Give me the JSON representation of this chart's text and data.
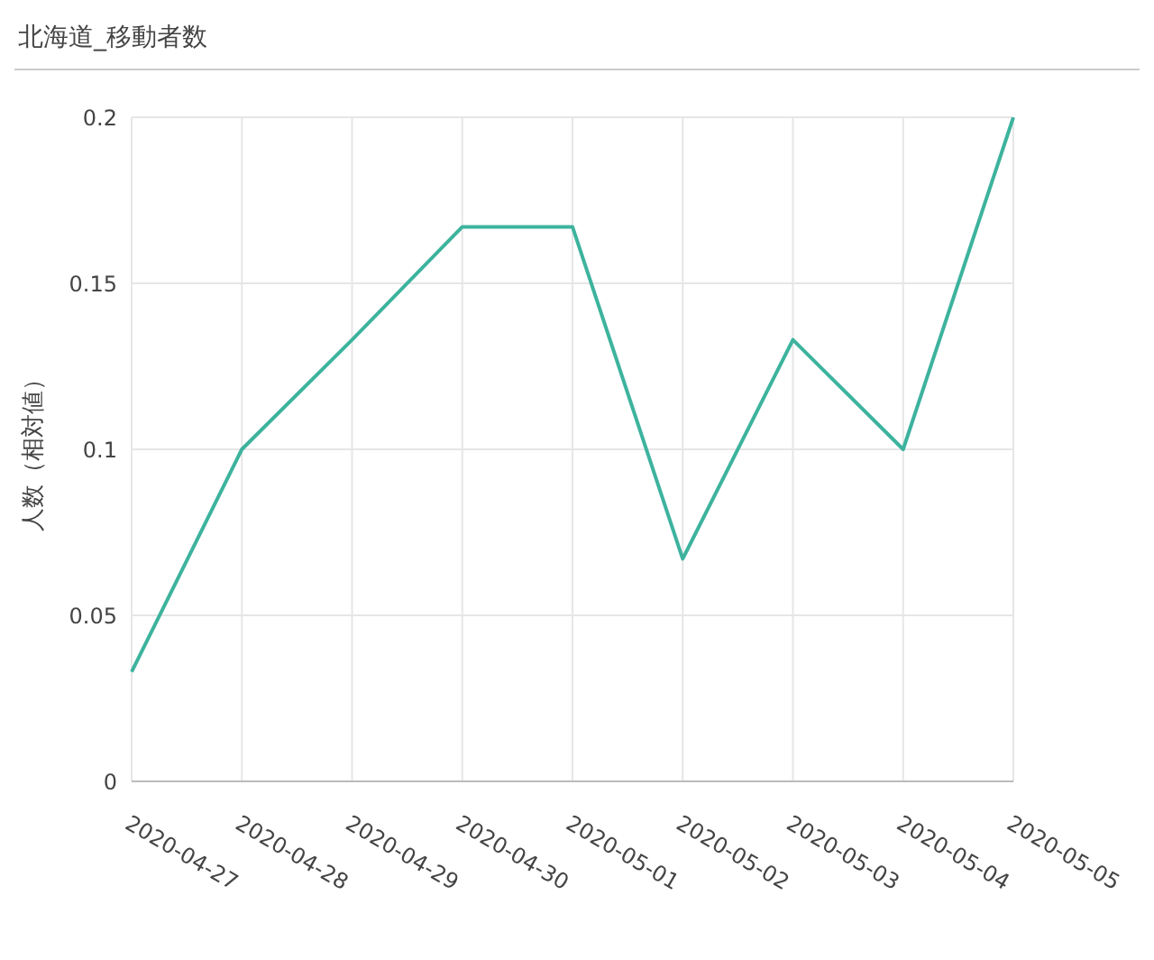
{
  "chart_data": {
    "type": "line",
    "title": "北海道_移動者数",
    "ylabel": "人数（相対値）",
    "categories": [
      "2020-04-27",
      "2020-04-28",
      "2020-04-29",
      "2020-04-30",
      "2020-05-01",
      "2020-05-02",
      "2020-05-03",
      "2020-05-04",
      "2020-05-05"
    ],
    "series": [
      {
        "color": "#3db39e",
        "values": [
          0.033,
          0.1,
          0.133,
          0.167,
          0.167,
          0.067,
          0.133,
          0.1,
          0.2
        ]
      }
    ],
    "ylim": [
      0,
      0.2
    ],
    "yticks": [
      0,
      0.05,
      0.1,
      0.15,
      0.2
    ],
    "grid": true,
    "legend": false,
    "marker": "none",
    "line_style": "solid"
  }
}
